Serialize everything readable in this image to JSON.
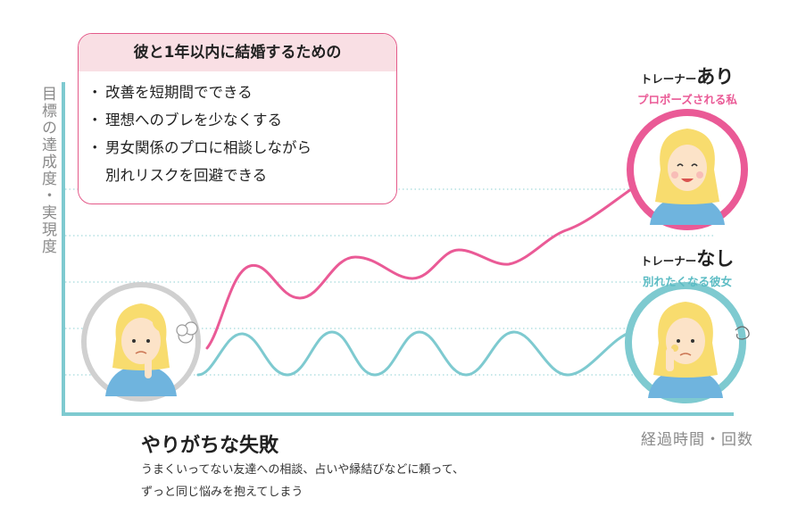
{
  "axes": {
    "y_label": "目標の達成度・実現度",
    "x_label": "経過時間・回数"
  },
  "info_box": {
    "title": "彼と1年以内に結婚するための",
    "items": [
      "改善を短期間でできる",
      "理想へのブレを少なくする",
      "男女関係のプロに相談しながら"
    ],
    "item_continuation": "別れリスクを回避できる"
  },
  "with_trainer": {
    "prefix": "トレーナー",
    "keyword": "あり",
    "caption": "プロポーズされる私"
  },
  "without_trainer": {
    "prefix": "トレーナー",
    "keyword": "なし",
    "caption": "別れたくなる彼女"
  },
  "common_failure": {
    "title": "やりがちな失敗",
    "description_line1": "うまくいってない友達への相談、占いや縁結びなどに頼って、",
    "description_line2": "ずっと同じ悩みを抱えてしまう"
  },
  "colors": {
    "pink": "#ea5a96",
    "teal": "#7ecad0",
    "axis": "#7ecad0",
    "grid": "#a5d9dc",
    "box_border": "#e45a8a",
    "box_header": "#f9dfe4",
    "start_ring": "#d0d0d0",
    "skin": "#fce3c8",
    "hair": "#f8dc6e",
    "shirt": "#6fb4de"
  }
}
